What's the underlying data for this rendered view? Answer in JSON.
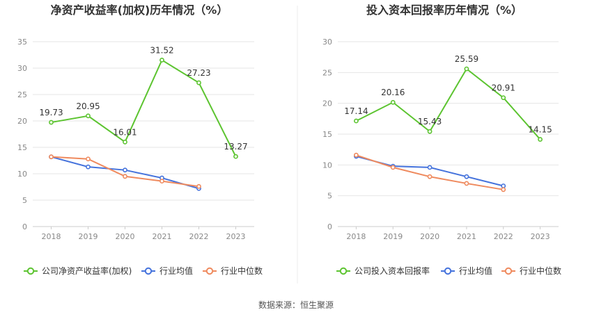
{
  "source_label": "数据来源：恒生聚源",
  "colors": {
    "company": "#5cc430",
    "industry_avg": "#4472dc",
    "industry_median": "#ef8a5e",
    "grid": "#e6e6e6",
    "divider": "#eeeeee"
  },
  "chart_data": [
    {
      "type": "line",
      "title": "净资产收益率(加权)历年情况（%）",
      "x": [
        "2018",
        "2019",
        "2020",
        "2021",
        "2022",
        "2023"
      ],
      "ylim": [
        0,
        35
      ],
      "yticks": [
        0,
        5,
        10,
        15,
        20,
        25,
        30,
        35
      ],
      "grid": true,
      "legend_position": "bottom",
      "series": [
        {
          "name": "公司净资产收益率(加权)",
          "values": [
            19.73,
            20.95,
            16.01,
            31.52,
            27.23,
            13.27
          ],
          "labels": [
            "19.73",
            "20.95",
            "16.01",
            "31.52",
            "27.23",
            "13.27"
          ],
          "color": "#5cc430"
        },
        {
          "name": "行业均值",
          "values": [
            13.2,
            11.3,
            10.7,
            9.2,
            7.2,
            null
          ],
          "color": "#4472dc"
        },
        {
          "name": "行业中位数",
          "values": [
            13.2,
            12.8,
            9.5,
            8.6,
            7.6,
            null
          ],
          "color": "#ef8a5e"
        }
      ]
    },
    {
      "type": "line",
      "title": "投入资本回报率历年情况（%）",
      "x": [
        "2018",
        "2019",
        "2020",
        "2021",
        "2022",
        "2023"
      ],
      "ylim": [
        0,
        30
      ],
      "yticks": [
        0,
        5,
        10,
        15,
        20,
        25,
        30
      ],
      "grid": true,
      "legend_position": "bottom",
      "series": [
        {
          "name": "公司投入资本回报率",
          "values": [
            17.14,
            20.16,
            15.43,
            25.59,
            20.91,
            14.15
          ],
          "labels": [
            "17.14",
            "20.16",
            "15.43",
            "25.59",
            "20.91",
            "14.15"
          ],
          "color": "#5cc430"
        },
        {
          "name": "行业均值",
          "values": [
            11.4,
            9.8,
            9.6,
            8.1,
            6.6,
            null
          ],
          "color": "#4472dc"
        },
        {
          "name": "行业中位数",
          "values": [
            11.6,
            9.6,
            8.1,
            7.0,
            6.0,
            null
          ],
          "color": "#ef8a5e"
        }
      ]
    }
  ]
}
